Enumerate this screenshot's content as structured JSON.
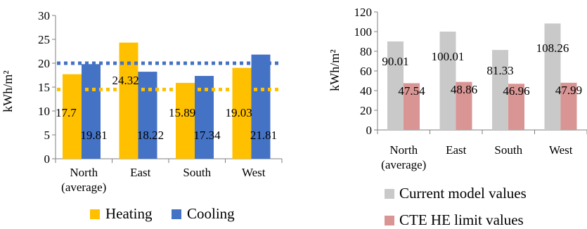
{
  "chart_data": [
    {
      "type": "bar",
      "categories": [
        "North\n(average)",
        "East",
        "South",
        "West"
      ],
      "series": [
        {
          "name": "Heating",
          "values": [
            17.7,
            24.32,
            15.89,
            19.03
          ],
          "color": "#FFC000"
        },
        {
          "name": "Cooling",
          "values": [
            19.81,
            18.22,
            17.34,
            21.81
          ],
          "color": "#4472C4"
        }
      ],
      "reference_lines": [
        {
          "value": 20,
          "style": "dotted",
          "color": "#4472C4"
        },
        {
          "value": 14.5,
          "style": "dotted",
          "color": "#FFC000"
        }
      ],
      "xlabel": "",
      "ylabel": "kWh/m²",
      "ylim": [
        0,
        30
      ],
      "yticks": [
        0,
        5,
        10,
        15,
        20,
        25,
        30
      ],
      "grid": false,
      "legend": "bottom",
      "data_labels": true
    },
    {
      "type": "bar",
      "categories": [
        "North\n(average)",
        "East",
        "South",
        "West"
      ],
      "series": [
        {
          "name": "Current model values",
          "values": [
            90.01,
            100.01,
            81.33,
            108.26
          ],
          "color": "#C9C9C9"
        },
        {
          "name": "CTE HE limit values",
          "values": [
            47.54,
            48.86,
            46.96,
            47.99
          ],
          "color": "#D99594"
        }
      ],
      "xlabel": "",
      "ylabel": "kWh/m²",
      "ylim": [
        0,
        120
      ],
      "yticks": [
        0,
        20,
        40,
        60,
        80,
        100,
        120
      ],
      "grid": false,
      "legend": "bottom",
      "data_labels": true
    }
  ]
}
